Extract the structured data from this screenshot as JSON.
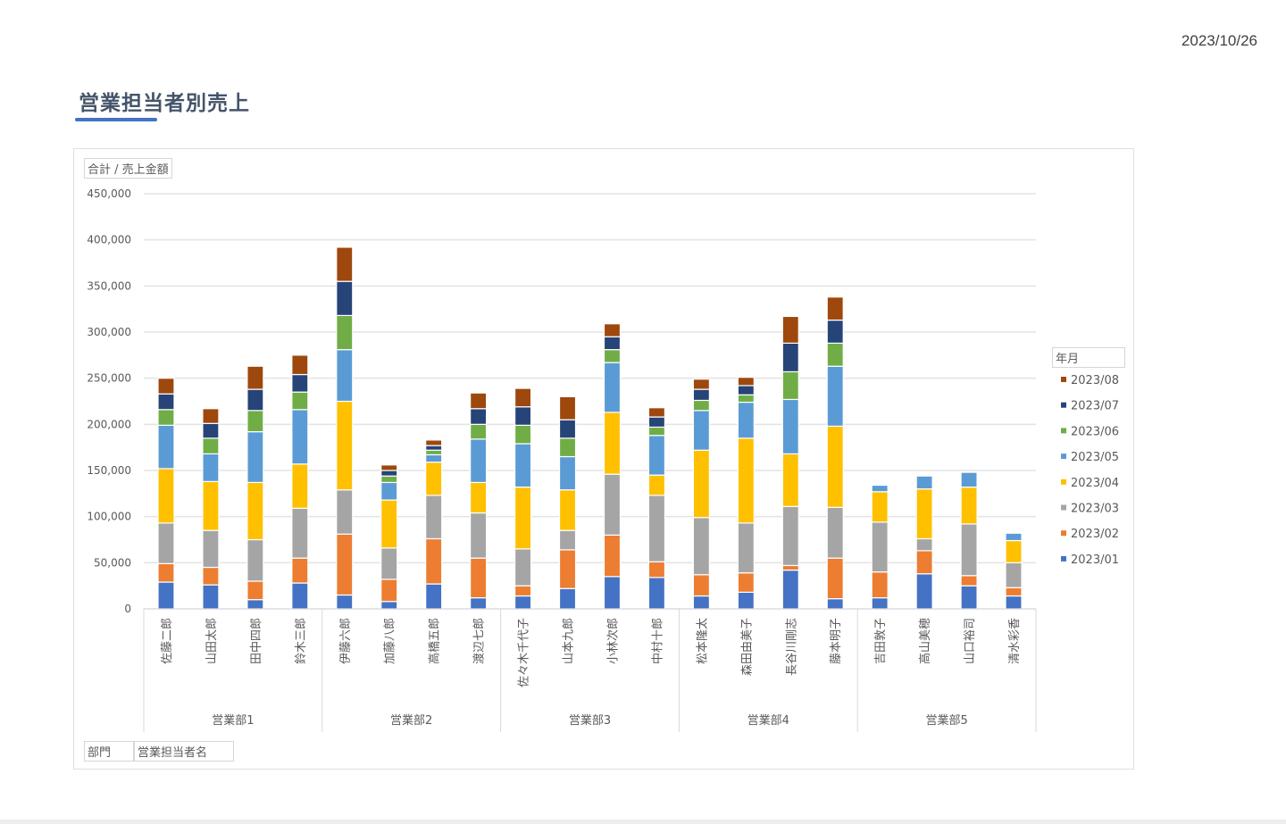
{
  "header": {
    "date": "2023/10/26",
    "title": "営業担当者別売上"
  },
  "pivot_buttons": {
    "value_field": "合計 / 売上金額",
    "legend_field": "年月",
    "axis_field_1": "部門",
    "axis_field_2": "営業担当者名"
  },
  "colors": {
    "2023/01": "#4472c4",
    "2023/02": "#ed7d31",
    "2023/03": "#a5a5a5",
    "2023/04": "#ffc000",
    "2023/05": "#5b9bd5",
    "2023/06": "#70ad47",
    "2023/07": "#264478",
    "2023/08": "#9e480e"
  },
  "chart_data": {
    "type": "bar",
    "stacked": true,
    "title": "営業担当者別売上",
    "ylabel": "合計 / 売上金額",
    "xlabel": "部門 / 営業担当者名",
    "ylim": [
      0,
      450000
    ],
    "yticks": [
      "0",
      "50,000",
      "100,000",
      "150,000",
      "200,000",
      "250,000",
      "300,000",
      "350,000",
      "400,000",
      "450,000"
    ],
    "grid": true,
    "legend_title": "年月",
    "legend_position": "right",
    "groups": [
      {
        "name": "営業部1",
        "categories": [
          "佐藤二郎",
          "山田太郎",
          "田中四郎",
          "鈴木三郎"
        ]
      },
      {
        "name": "営業部2",
        "categories": [
          "伊藤六郎",
          "加藤八郎",
          "高橋五郎",
          "渡辺七郎"
        ]
      },
      {
        "name": "営業部3",
        "categories": [
          "佐々木千代子",
          "山本九郎",
          "小林次郎",
          "中村十郎"
        ]
      },
      {
        "name": "営業部4",
        "categories": [
          "松本隆太",
          "森田由美子",
          "長谷川剛志",
          "藤本明子"
        ]
      },
      {
        "name": "営業部5",
        "categories": [
          "吉田敦子",
          "高山美穂",
          "山口裕司",
          "清水彩香"
        ]
      }
    ],
    "categories": [
      "佐藤二郎",
      "山田太郎",
      "田中四郎",
      "鈴木三郎",
      "伊藤六郎",
      "加藤八郎",
      "高橋五郎",
      "渡辺七郎",
      "佐々木千代子",
      "山本九郎",
      "小林次郎",
      "中村十郎",
      "松本隆太",
      "森田由美子",
      "長谷川剛志",
      "藤本明子",
      "吉田敦子",
      "高山美穂",
      "山口裕司",
      "清水彩香"
    ],
    "series": [
      {
        "name": "2023/01",
        "values": [
          29000,
          26000,
          10000,
          28000,
          15000,
          8000,
          27000,
          12000,
          14000,
          22000,
          35000,
          34000,
          14000,
          18000,
          42000,
          11000,
          12000,
          38000,
          25000,
          14000
        ]
      },
      {
        "name": "2023/02",
        "values": [
          20000,
          19000,
          20000,
          27000,
          66000,
          24000,
          49000,
          43000,
          11000,
          42000,
          45000,
          17000,
          23000,
          21000,
          5000,
          44000,
          28000,
          25000,
          11000,
          9000
        ]
      },
      {
        "name": "2023/03",
        "values": [
          44000,
          40000,
          45000,
          54000,
          48000,
          34000,
          47000,
          49000,
          40000,
          21000,
          66000,
          72000,
          62000,
          54000,
          64000,
          55000,
          54000,
          13000,
          56000,
          27000
        ]
      },
      {
        "name": "2023/04",
        "values": [
          59000,
          53000,
          62000,
          48000,
          96000,
          52000,
          36000,
          33000,
          67000,
          44000,
          67000,
          22000,
          73000,
          92000,
          57000,
          88000,
          33000,
          54000,
          40000,
          24000
        ]
      },
      {
        "name": "2023/05",
        "values": [
          47000,
          30000,
          55000,
          59000,
          56000,
          19000,
          8000,
          47000,
          47000,
          36000,
          54000,
          43000,
          43000,
          39000,
          59000,
          65000,
          7000,
          14000,
          16000,
          8000
        ]
      },
      {
        "name": "2023/06",
        "values": [
          17000,
          17000,
          23000,
          19000,
          37000,
          7000,
          5000,
          16000,
          20000,
          20000,
          14000,
          9000,
          11000,
          8000,
          30000,
          25000,
          0,
          0,
          0,
          0
        ]
      },
      {
        "name": "2023/07",
        "values": [
          17000,
          16000,
          23000,
          19000,
          37000,
          6000,
          5000,
          17000,
          20000,
          20000,
          14000,
          11000,
          12000,
          10000,
          31000,
          25000,
          0,
          0,
          0,
          0
        ]
      },
      {
        "name": "2023/08",
        "values": [
          17000,
          16000,
          25000,
          21000,
          37000,
          6000,
          6000,
          17000,
          20000,
          25000,
          14000,
          10000,
          11000,
          9000,
          29000,
          25000,
          0,
          0,
          0,
          0
        ]
      }
    ]
  }
}
